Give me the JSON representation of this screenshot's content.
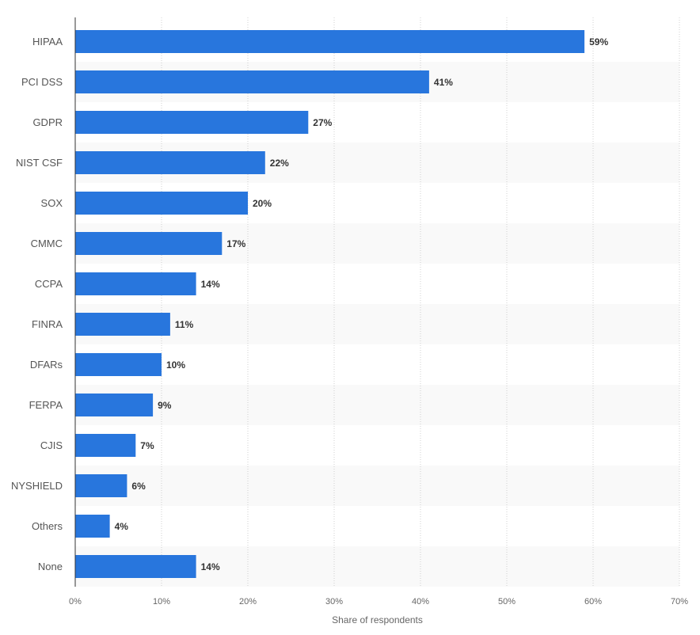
{
  "chart_data": {
    "type": "bar",
    "orientation": "horizontal",
    "categories": [
      "HIPAA",
      "PCI DSS",
      "GDPR",
      "NIST CSF",
      "SOX",
      "CMMC",
      "CCPA",
      "FINRA",
      "DFARs",
      "FERPA",
      "CJIS",
      "NYSHIELD",
      "Others",
      "None"
    ],
    "values": [
      59,
      41,
      27,
      22,
      20,
      17,
      14,
      11,
      10,
      9,
      7,
      6,
      4,
      14
    ],
    "value_labels": [
      "59%",
      "41%",
      "27%",
      "22%",
      "20%",
      "17%",
      "14%",
      "11%",
      "10%",
      "9%",
      "7%",
      "6%",
      "4%",
      "14%"
    ],
    "xlim": [
      0,
      70
    ],
    "x_ticks": [
      0,
      10,
      20,
      30,
      40,
      50,
      60,
      70
    ],
    "x_tick_labels": [
      "0%",
      "10%",
      "20%",
      "30%",
      "40%",
      "50%",
      "60%",
      "70%"
    ],
    "xlabel": "Share of respondents",
    "ylabel": "",
    "title": "",
    "grid": true,
    "legend": "none",
    "bar_color": "#2876dd",
    "band_color": "#f9f9f9",
    "grid_color": "#d0d0d0"
  }
}
